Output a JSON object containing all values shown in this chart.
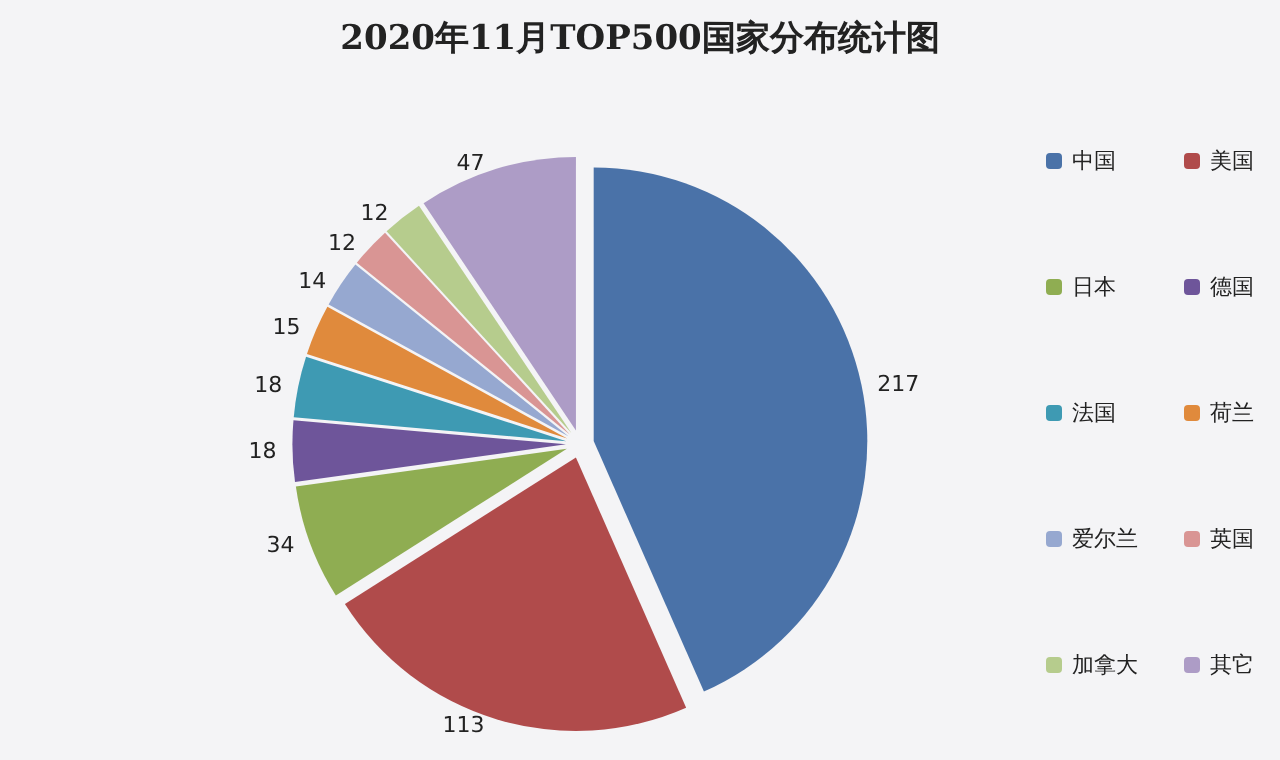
{
  "chart_data": {
    "type": "pie",
    "title": "2020年11月TOP500国家分布统计图",
    "categories": [
      "中国",
      "美国",
      "日本",
      "德国",
      "法国",
      "荷兰",
      "爱尔兰",
      "英国",
      "加拿大",
      "其它"
    ],
    "values": [
      217,
      113,
      34,
      18,
      18,
      15,
      14,
      12,
      12,
      47
    ],
    "colors": [
      "#4a72a8",
      "#b04b4b",
      "#8fad52",
      "#6e559a",
      "#3e9ab3",
      "#e08a3c",
      "#96a8d0",
      "#d99594",
      "#b6cc8d",
      "#ad9cc6"
    ],
    "data_labels": true,
    "legend": "right"
  }
}
